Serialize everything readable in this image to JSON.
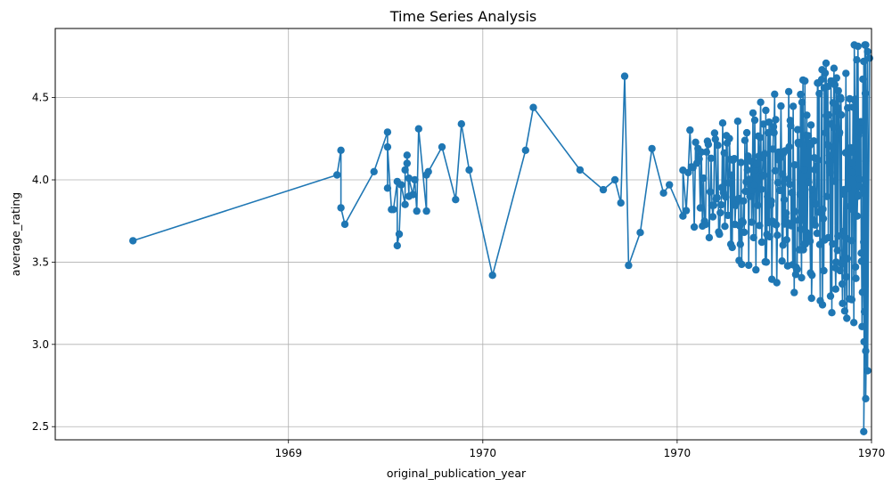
{
  "chart_data": {
    "type": "line",
    "title": "Time Series Analysis",
    "xlabel": "original_publication_year",
    "ylabel": "average_rating",
    "grid": true,
    "marker": "circle",
    "color": "#1f77b4",
    "x_tick_labels": [
      "1969",
      "1970",
      "1970",
      "1970"
    ],
    "y_ticks": [
      2.5,
      3.0,
      3.5,
      4.0,
      4.5
    ],
    "y_tick_labels": [
      "2.5",
      "3.0",
      "3.5",
      "4.0",
      "4.5"
    ],
    "ylim": [
      2.42,
      4.92
    ],
    "xlim": [
      -0.2,
      4.0
    ],
    "x_tick_positions": [
      1,
      2,
      3,
      4
    ],
    "series": [
      {
        "x": [
          0.2,
          1.25,
          1.27,
          1.27,
          1.29,
          1.44,
          1.51,
          1.51,
          1.51,
          1.53,
          1.54,
          1.56,
          1.56,
          1.57,
          1.58,
          1.6,
          1.6,
          1.61,
          1.61,
          1.62,
          1.62,
          1.64,
          1.65,
          1.66,
          1.67,
          1.71,
          1.71,
          1.72,
          1.79,
          1.86,
          1.89,
          1.93,
          2.05,
          2.22,
          2.26,
          2.5,
          2.62,
          2.68,
          2.71,
          2.73,
          2.75,
          2.81,
          2.87,
          2.93,
          2.96,
          3.03
        ],
        "y": [
          3.63,
          4.03,
          4.18,
          3.83,
          3.73,
          4.05,
          4.29,
          3.95,
          4.2,
          3.82,
          3.82,
          3.99,
          3.6,
          3.67,
          3.97,
          3.85,
          4.06,
          4.1,
          4.15,
          3.9,
          4.01,
          3.91,
          4.0,
          3.81,
          4.31,
          3.81,
          4.03,
          4.05,
          4.2,
          3.88,
          4.34,
          4.06,
          3.42,
          4.18,
          4.44,
          4.06,
          3.94,
          4.0,
          3.86,
          4.63,
          3.48,
          3.68,
          4.19,
          3.92,
          3.97,
          3.78
        ]
      }
    ],
    "dense_region": {
      "x_range": [
        3.03,
        3.97
      ],
      "y_range": [
        2.47,
        4.82
      ]
    }
  }
}
